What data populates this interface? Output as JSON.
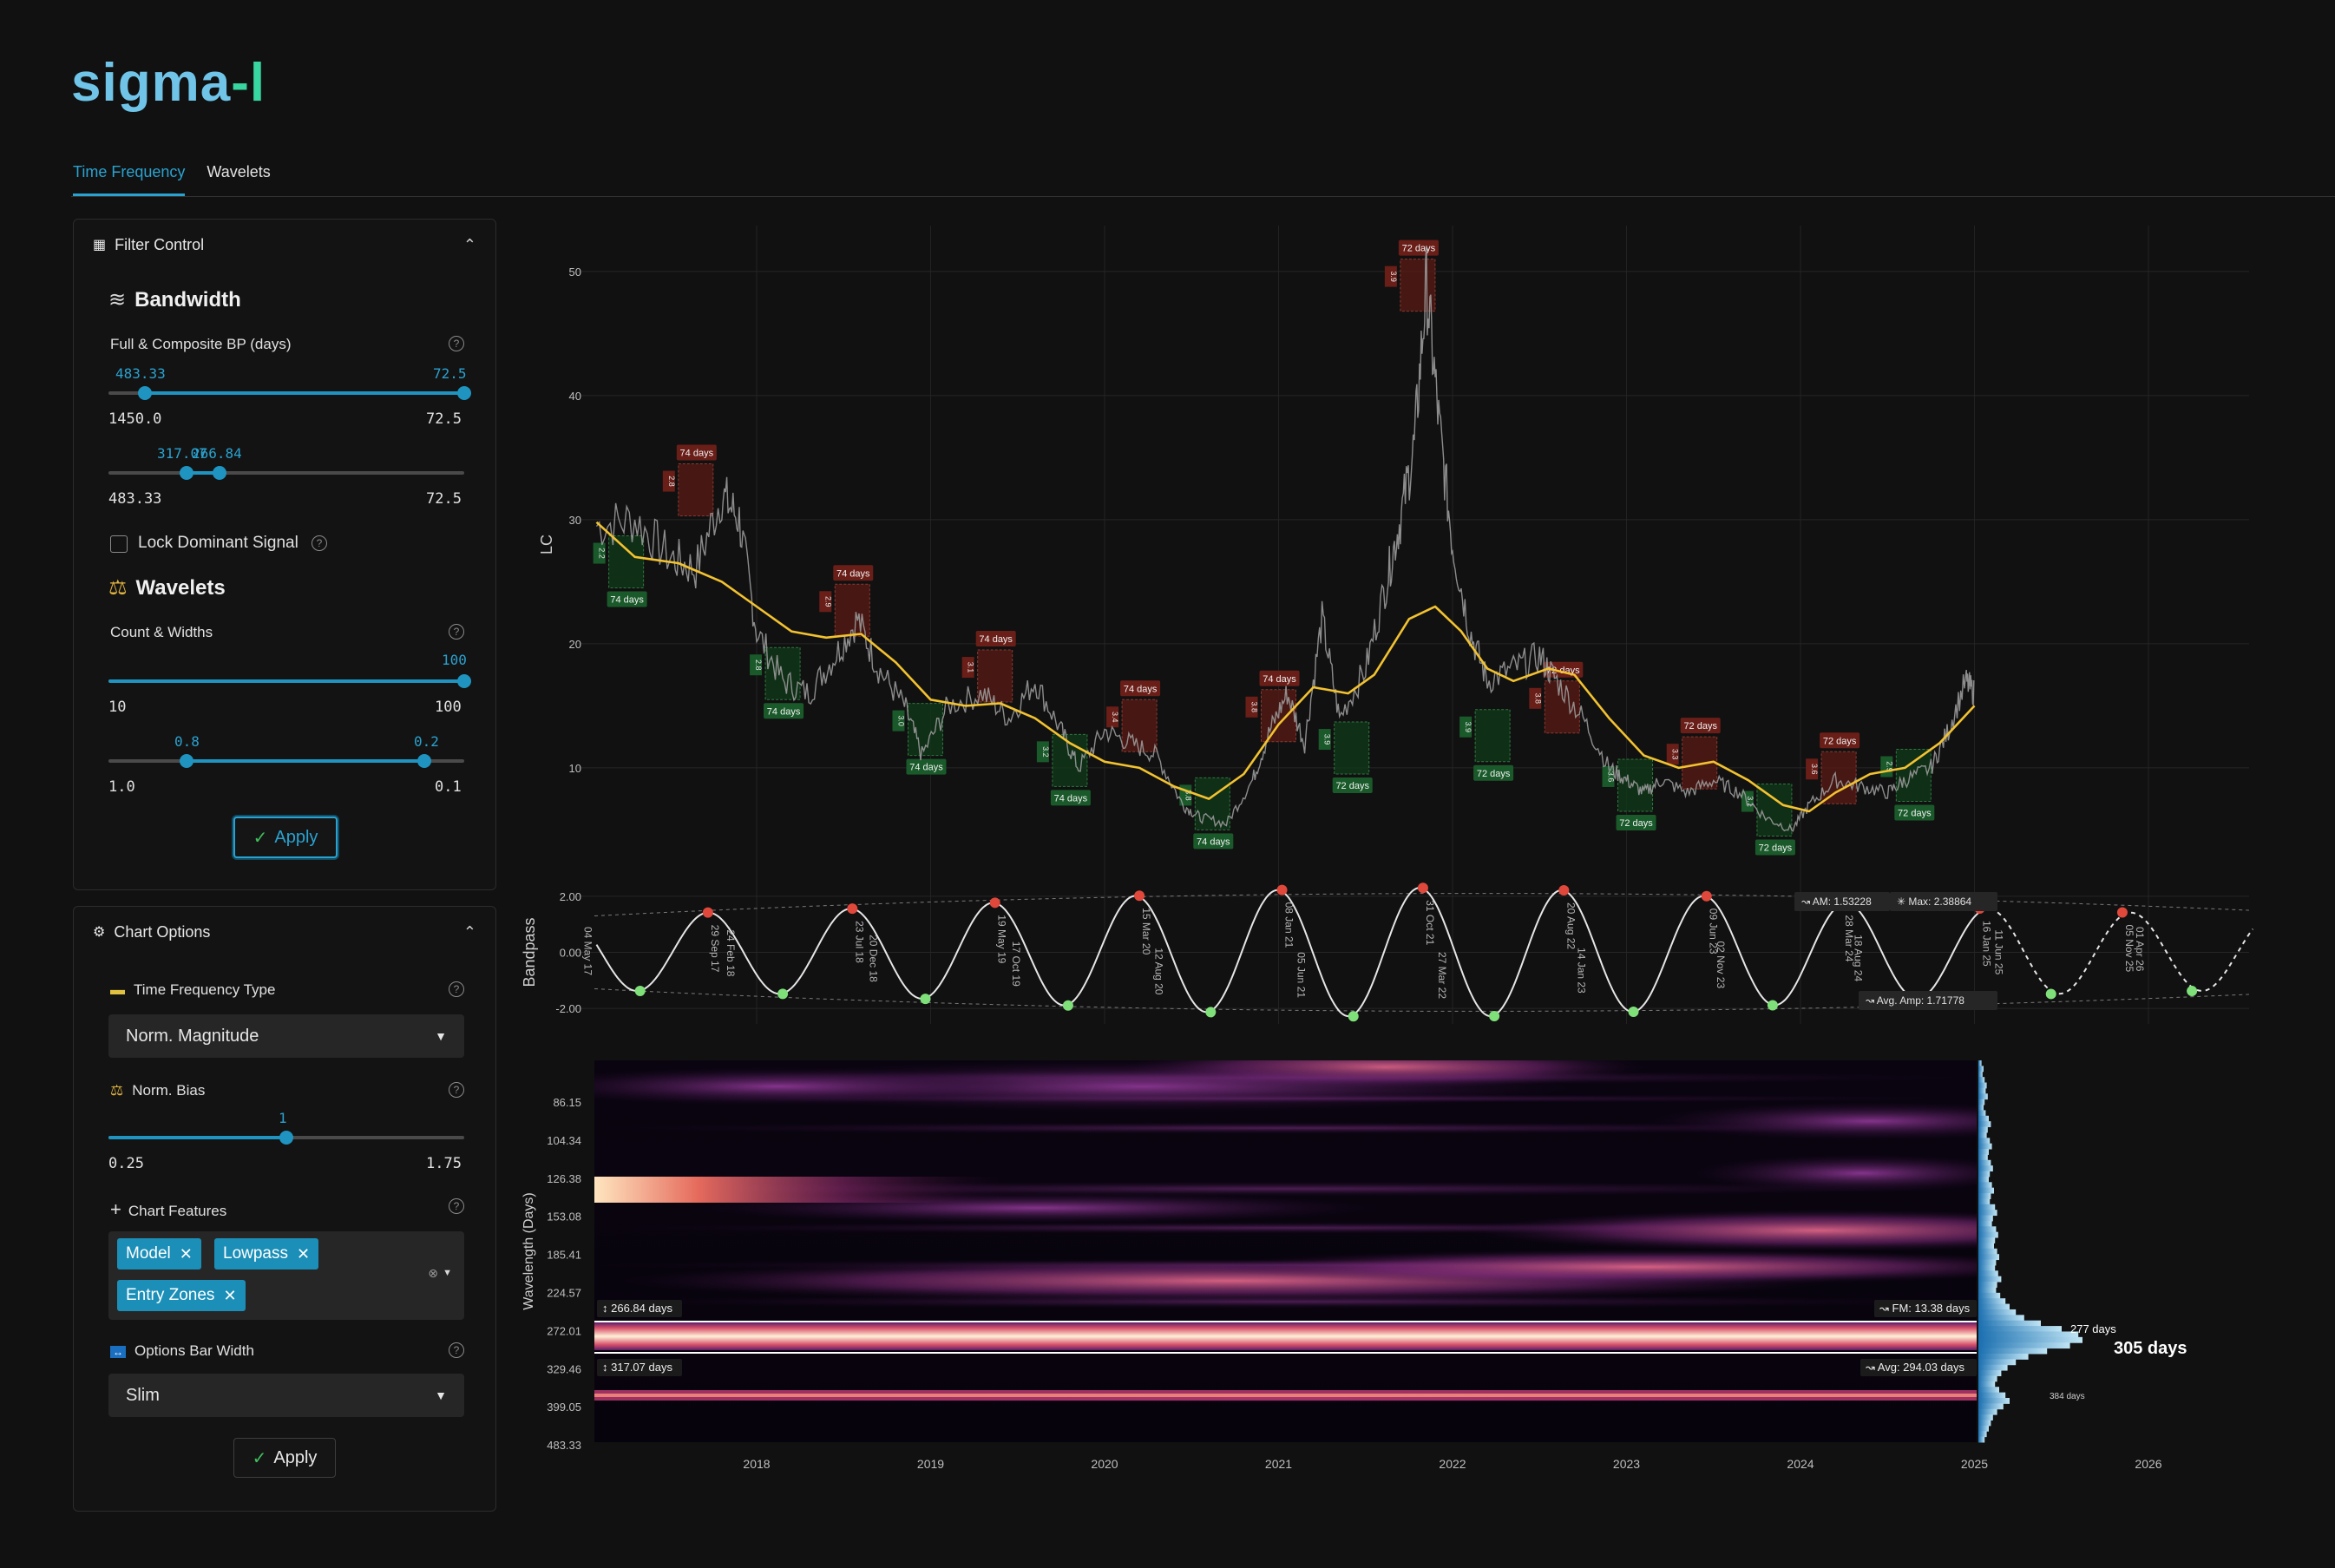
{
  "app": {
    "logo_part1": "sigma",
    "logo_part2": "-l"
  },
  "tabs": [
    {
      "label": "Time Frequency",
      "active": true
    },
    {
      "label": "Wavelets",
      "active": false
    }
  ],
  "filter_control": {
    "title": "Filter Control",
    "bandwidth": {
      "title": "Bandwidth",
      "label": "Full & Composite BP (days)",
      "slider1": {
        "low_value": "483.33",
        "high_value": "72.5",
        "min": "1450.0",
        "max": "72.5"
      },
      "slider2": {
        "low_value": "317.07",
        "high_value": "266.84",
        "min": "483.33",
        "max": "72.5"
      }
    },
    "lock_dominant_signal": "Lock Dominant Signal",
    "wavelets": {
      "title": "Wavelets",
      "label": "Count & Widths",
      "slider1": {
        "value": "100",
        "min": "10",
        "max": "100"
      },
      "slider2": {
        "low_value": "0.8",
        "high_value": "0.2",
        "min": "1.0",
        "max": "0.1"
      }
    },
    "apply_label": "Apply"
  },
  "chart_options": {
    "title": "Chart Options",
    "tf_type_label": "Time Frequency Type",
    "tf_type_value": "Norm. Magnitude",
    "norm_bias_label": "Norm. Bias",
    "norm_bias": {
      "value": "1",
      "min": "0.25",
      "max": "1.75"
    },
    "chart_features_label": "Chart Features",
    "chart_features": [
      "Model",
      "Lowpass",
      "Entry Zones"
    ],
    "options_bar_width_label": "Options Bar Width",
    "options_bar_width_value": "Slim",
    "apply_label": "Apply"
  },
  "colors": {
    "accent": "#1f94c0",
    "price": "#9a9a9a",
    "lowpass": "#f2c230",
    "peak": "#e0483c",
    "trough": "#7fe07a",
    "zone_red": "#5a1a14",
    "zone_green": "#103a1a"
  },
  "chart_data": [
    {
      "type": "line",
      "ylabel": "LC",
      "yticks": [
        10,
        20,
        30,
        40,
        50
      ],
      "ylim": [
        3,
        53
      ],
      "xlim": [
        2017.06,
        2026.6
      ],
      "series": [
        {
          "values": [
            [
              2017.08,
              29.5
            ],
            [
              2017.3,
              30
            ],
            [
              2017.5,
              27
            ],
            [
              2017.65,
              26
            ],
            [
              2017.8,
              32
            ],
            [
              2017.9,
              30
            ],
            [
              2018.0,
              21
            ],
            [
              2018.15,
              17
            ],
            [
              2018.3,
              16
            ],
            [
              2018.45,
              19
            ],
            [
              2018.58,
              22
            ],
            [
              2018.7,
              18
            ],
            [
              2018.85,
              15
            ],
            [
              2018.95,
              11
            ],
            [
              2019.1,
              15
            ],
            [
              2019.3,
              16
            ],
            [
              2019.45,
              14
            ],
            [
              2019.6,
              17
            ],
            [
              2019.75,
              13
            ],
            [
              2019.85,
              10
            ],
            [
              2020.0,
              13
            ],
            [
              2020.15,
              12
            ],
            [
              2020.3,
              11
            ],
            [
              2020.45,
              7
            ],
            [
              2020.55,
              6
            ],
            [
              2020.7,
              5.5
            ],
            [
              2020.85,
              9
            ],
            [
              2020.95,
              13
            ],
            [
              2021.05,
              16
            ],
            [
              2021.15,
              12
            ],
            [
              2021.25,
              22
            ],
            [
              2021.35,
              14
            ],
            [
              2021.5,
              18
            ],
            [
              2021.62,
              25
            ],
            [
              2021.7,
              30
            ],
            [
              2021.78,
              36
            ],
            [
              2021.85,
              49
            ],
            [
              2021.92,
              38
            ],
            [
              2022.0,
              28
            ],
            [
              2022.1,
              21
            ],
            [
              2022.2,
              17
            ],
            [
              2022.35,
              18
            ],
            [
              2022.5,
              19
            ],
            [
              2022.6,
              17
            ],
            [
              2022.75,
              14
            ],
            [
              2022.9,
              10
            ],
            [
              2023.0,
              9
            ],
            [
              2023.1,
              8
            ],
            [
              2023.2,
              9
            ],
            [
              2023.35,
              8
            ],
            [
              2023.5,
              9
            ],
            [
              2023.65,
              8
            ],
            [
              2023.8,
              6
            ],
            [
              2023.95,
              5
            ],
            [
              2024.05,
              7
            ],
            [
              2024.2,
              9
            ],
            [
              2024.35,
              8.5
            ],
            [
              2024.5,
              8
            ],
            [
              2024.6,
              9
            ],
            [
              2024.75,
              10
            ],
            [
              2024.85,
              13
            ],
            [
              2024.95,
              17
            ],
            [
              2025.0,
              16
            ]
          ]
        },
        {
          "values": [
            [
              2017.08,
              29.8
            ],
            [
              2017.3,
              27
            ],
            [
              2017.55,
              26.5
            ],
            [
              2017.8,
              25
            ],
            [
              2018.0,
              23
            ],
            [
              2018.2,
              21
            ],
            [
              2018.4,
              20.5
            ],
            [
              2018.6,
              20.8
            ],
            [
              2018.8,
              18.5
            ],
            [
              2019.0,
              15.5
            ],
            [
              2019.2,
              15
            ],
            [
              2019.4,
              15.2
            ],
            [
              2019.6,
              14
            ],
            [
              2019.8,
              12
            ],
            [
              2020.0,
              10.5
            ],
            [
              2020.2,
              10
            ],
            [
              2020.4,
              8.5
            ],
            [
              2020.6,
              7.5
            ],
            [
              2020.8,
              9.5
            ],
            [
              2021.0,
              13.5
            ],
            [
              2021.2,
              16.5
            ],
            [
              2021.4,
              16
            ],
            [
              2021.55,
              17.5
            ],
            [
              2021.75,
              22
            ],
            [
              2021.9,
              23
            ],
            [
              2022.05,
              21
            ],
            [
              2022.2,
              18
            ],
            [
              2022.35,
              17
            ],
            [
              2022.55,
              18
            ],
            [
              2022.7,
              17.5
            ],
            [
              2022.9,
              14
            ],
            [
              2023.1,
              11
            ],
            [
              2023.3,
              10
            ],
            [
              2023.5,
              10.5
            ],
            [
              2023.7,
              9
            ],
            [
              2023.9,
              7
            ],
            [
              2024.05,
              6.5
            ],
            [
              2024.2,
              8
            ],
            [
              2024.4,
              9.5
            ],
            [
              2024.6,
              10
            ],
            [
              2024.8,
              12
            ],
            [
              2025.0,
              15
            ]
          ]
        }
      ],
      "annotations_peak": [
        {
          "x": 2017.65,
          "y": 34.5,
          "label": "74 days",
          "code": "2.8"
        },
        {
          "x": 2018.55,
          "y": 24.8,
          "label": "74 days",
          "code": "2.9"
        },
        {
          "x": 2019.37,
          "y": 19.5,
          "label": "74 days",
          "code": "3.1"
        },
        {
          "x": 2020.2,
          "y": 15.5,
          "label": "74 days",
          "code": "3.4"
        },
        {
          "x": 2021.0,
          "y": 16.3,
          "label": "74 days",
          "code": "3.8"
        },
        {
          "x": 2021.8,
          "y": 51,
          "label": "72 days",
          "code": "3.9"
        },
        {
          "x": 2022.63,
          "y": 17,
          "label": "72 days",
          "code": "3.8"
        },
        {
          "x": 2023.42,
          "y": 12.5,
          "label": "72 days",
          "code": "3.3"
        },
        {
          "x": 2024.22,
          "y": 11.3,
          "label": "72 days",
          "code": "3.6"
        }
      ],
      "annotations_trough": [
        {
          "x": 2017.25,
          "y": 24.5,
          "label": "74 days",
          "code": "2.2"
        },
        {
          "x": 2018.15,
          "y": 15.5,
          "label": "74 days",
          "code": "2.8"
        },
        {
          "x": 2018.97,
          "y": 11,
          "label": "74 days",
          "code": "3.0"
        },
        {
          "x": 2019.8,
          "y": 8.5,
          "label": "74 days",
          "code": "3.2"
        },
        {
          "x": 2020.62,
          "y": 5,
          "label": "74 days",
          "code": "3.8"
        },
        {
          "x": 2021.42,
          "y": 9.5,
          "label": "72 days",
          "code": "3.9"
        },
        {
          "x": 2022.23,
          "y": 10.5,
          "label": "72 days",
          "code": "3.9"
        },
        {
          "x": 2023.05,
          "y": 6.5,
          "label": "72 days",
          "code": "3.6"
        },
        {
          "x": 2023.85,
          "y": 4.5,
          "label": "72 days",
          "code": "3.1"
        },
        {
          "x": 2024.65,
          "y": 7.3,
          "label": "72 days",
          "code": "2.9"
        }
      ]
    },
    {
      "type": "line",
      "ylabel": "Bandpass",
      "yticks": [
        "2.00",
        "0.00",
        "-2.00"
      ],
      "ylim": [
        -2.4,
        2.4
      ],
      "peaks": [
        [
          "2017.72",
          "29 Sep 17"
        ],
        [
          "2018.55",
          "23 Jul 18"
        ],
        [
          "2019.37",
          "19 May 19"
        ],
        [
          "2020.2",
          "15 Mar 20"
        ],
        [
          "2021.02",
          "08 Jan 21"
        ],
        [
          "2021.83",
          "31 Oct 21"
        ],
        [
          "2022.64",
          "20 Aug 22"
        ],
        [
          "2023.46",
          "09 Jun 23"
        ],
        [
          "2024.24",
          "28 Mar 24"
        ],
        [
          "2025.03",
          "16 Jan 25"
        ],
        [
          "2025.85",
          "05 Nov 25"
        ]
      ],
      "troughs": [
        [
          "2017.33",
          "04 May 17"
        ],
        [
          "2018.15",
          "24 Feb 18"
        ],
        [
          "2018.97",
          "20 Dec 18"
        ],
        [
          "2019.79",
          "17 Oct 19"
        ],
        [
          "2020.61",
          "12 Aug 20"
        ],
        [
          "2021.43",
          "05 Jun 21"
        ],
        [
          "2022.24",
          "27 Mar 22"
        ],
        [
          "2023.04",
          "14 Jan 23"
        ],
        [
          "2023.84",
          "02 Nov 23"
        ],
        [
          "2024.63",
          "18 Aug 24"
        ],
        [
          "2025.44",
          "11 Jun 25"
        ],
        [
          "2026.25",
          "01 Apr 26"
        ]
      ],
      "am_label": "AM: 1.53228",
      "max_label": "Max: 2.38864",
      "avg_amp_label": "Avg. Amp: 1.71778"
    },
    {
      "type": "heatmap",
      "ylabel": "Wavelength (Days)",
      "yticks": [
        "86.15",
        "104.34",
        "126.38",
        "153.08",
        "185.41",
        "224.57",
        "272.01",
        "329.46",
        "399.05",
        "483.33"
      ],
      "xticks": [
        "2018",
        "2019",
        "2020",
        "2021",
        "2022",
        "2023",
        "2024",
        "2025",
        "2026"
      ],
      "band_upper_label": "266.84 days",
      "band_lower_label": "317.07 days",
      "fm_label": "FM: 13.38 days",
      "avg_label": "Avg: 294.03 days",
      "hist_labels": {
        "peak_main": "305 days",
        "peak_2": "277 days",
        "peak_3": "384 days"
      }
    }
  ]
}
